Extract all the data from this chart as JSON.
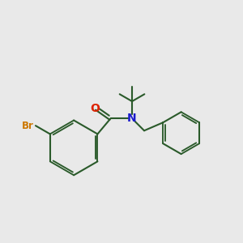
{
  "background_color": "#e9e9e9",
  "bond_color": "#2a5a2a",
  "atom_colors": {
    "O": "#dd2200",
    "N": "#1a1acc",
    "Br": "#cc7700"
  },
  "bond_width": 1.5,
  "figsize": [
    3.0,
    3.0
  ],
  "dpi": 100,
  "xlim": [
    0,
    10
  ],
  "ylim": [
    0,
    10
  ]
}
